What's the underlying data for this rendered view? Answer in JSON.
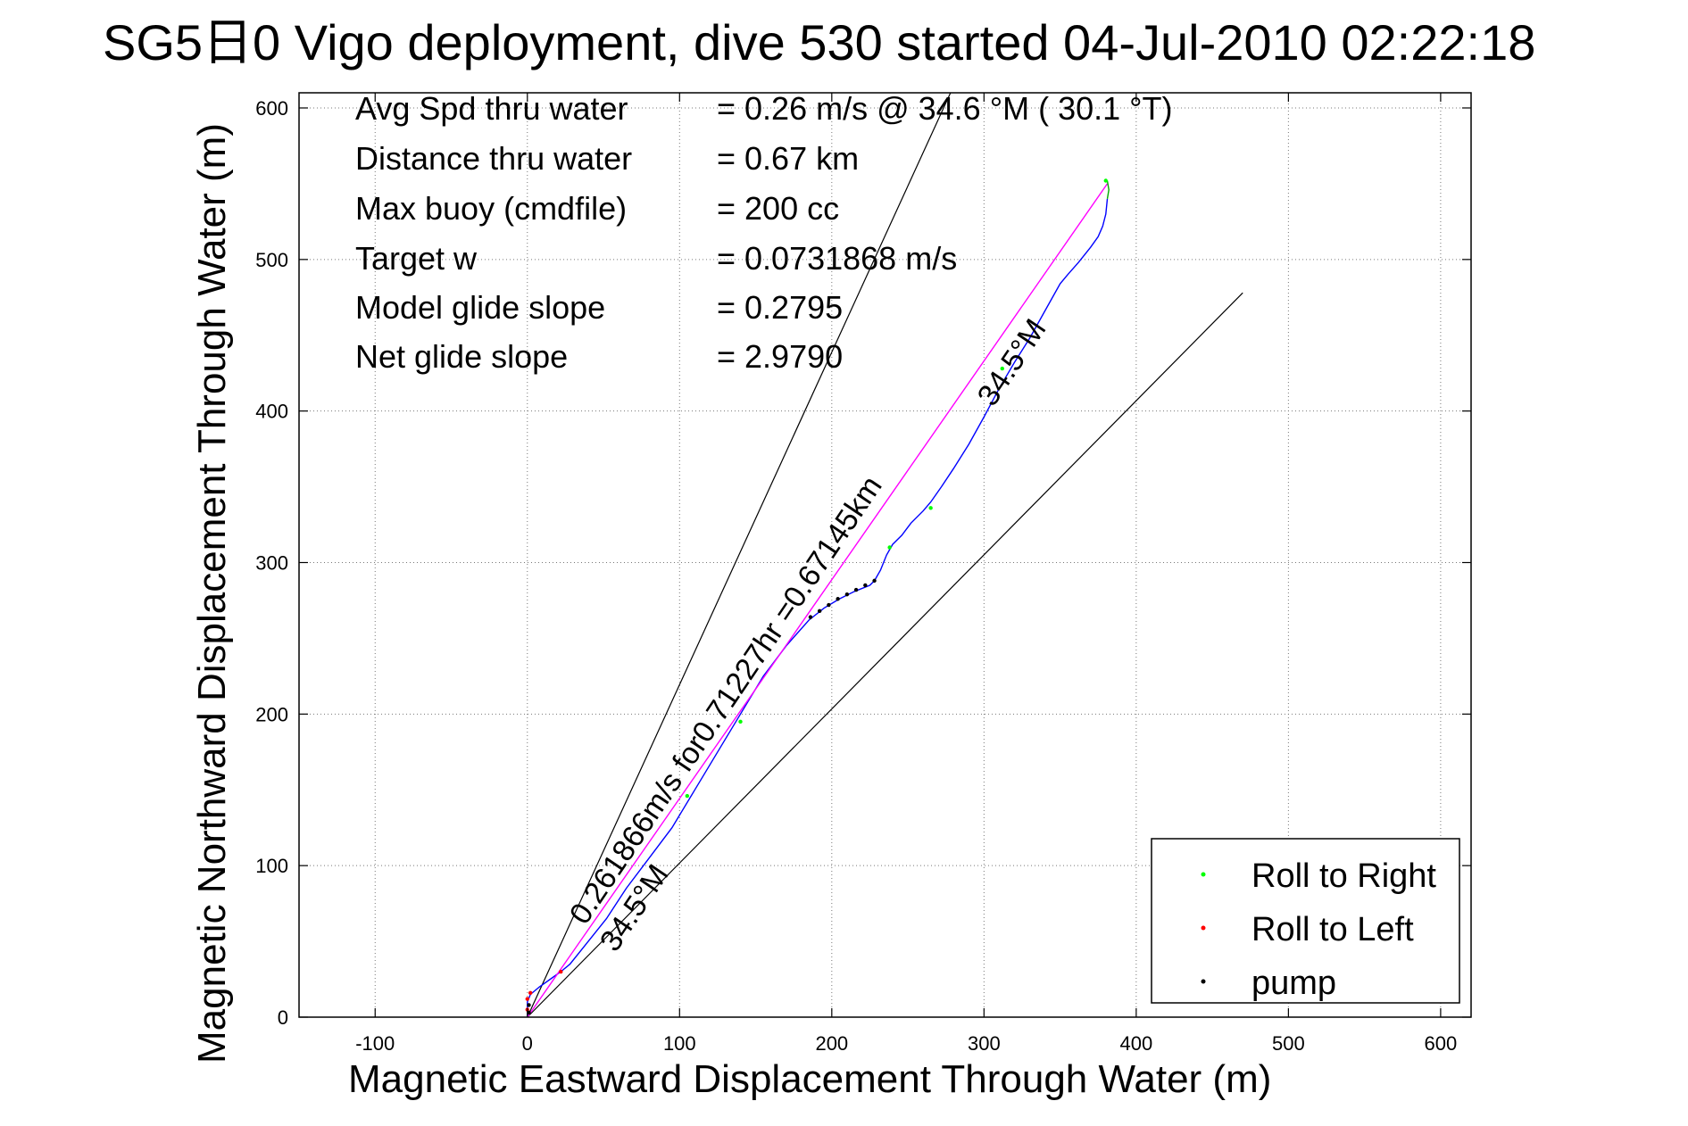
{
  "chart_data": {
    "type": "line",
    "title": "SG5日0 Vigo deployment, dive 530 started 04-Jul-2010 02:22:18",
    "xlabel": "Magnetic Eastward Displacement Through Water (m)",
    "ylabel": "Magnetic Northward Displacement Through Water (m)",
    "xlim": [
      -150,
      620
    ],
    "ylim": [
      0,
      610
    ],
    "xticks": [
      -100,
      0,
      100,
      200,
      300,
      400,
      500,
      600
    ],
    "yticks": [
      0,
      100,
      200,
      300,
      400,
      500,
      600
    ],
    "grid": true,
    "legend_position": "bottom-right",
    "stats": [
      {
        "label": "Avg Spd thru water",
        "value": "=  0.26 m/s @   34.6 °M ( 30.1 °T)"
      },
      {
        "label": "Distance thru water",
        "value": "=  0.67 km"
      },
      {
        "label": "Max buoy (cmdfile)",
        "value": "= 200 cc"
      },
      {
        "label": "Target w",
        "value": "= 0.0731868 m/s"
      },
      {
        "label": "Model glide slope",
        "value": "= 0.2795"
      },
      {
        "label": "Net glide slope",
        "value": "= 2.9790"
      }
    ],
    "annotations": [
      {
        "text": "0.261866m/s for0.71227hr =0.67145km",
        "x": 38,
        "y": 60,
        "angle_deg": -56
      },
      {
        "text": "34.5°M",
        "x": 58,
        "y": 42,
        "angle_deg": -56
      },
      {
        "text": "34.5°M",
        "x": 306,
        "y": 402,
        "angle_deg": -56
      }
    ],
    "reference_lines": [
      {
        "from": [
          0,
          0
        ],
        "to": [
          278,
          610
        ],
        "color": "#000000"
      },
      {
        "from": [
          0,
          0
        ],
        "to": [
          470,
          478
        ],
        "color": "#000000"
      }
    ],
    "series": [
      {
        "style": "line",
        "color": "#0000ff",
        "x": [
          0,
          0,
          2,
          8,
          15,
          22,
          28,
          40,
          52,
          65,
          80,
          95,
          110,
          125,
          140,
          155,
          170,
          185,
          195,
          205,
          215,
          225,
          228,
          232,
          236,
          240,
          246,
          252,
          260,
          265,
          272,
          280,
          290,
          300,
          310,
          320,
          330,
          340,
          350,
          355,
          362,
          370,
          375,
          378,
          380,
          381
        ],
        "y": [
          0,
          10,
          15,
          20,
          25,
          30,
          35,
          50,
          65,
          85,
          105,
          125,
          150,
          175,
          200,
          225,
          245,
          262,
          270,
          276,
          281,
          285,
          288,
          295,
          305,
          312,
          318,
          326,
          334,
          340,
          350,
          362,
          378,
          396,
          415,
          432,
          448,
          466,
          484,
          490,
          498,
          508,
          515,
          522,
          530,
          540
        ]
      },
      {
        "style": "line",
        "color": "#ff00ff",
        "x": [
          0,
          381
        ],
        "y": [
          0,
          550
        ]
      },
      {
        "style": "line",
        "color": "#00aa00",
        "x": [
          381,
          382,
          381
        ],
        "y": [
          540,
          546,
          552
        ]
      },
      {
        "name": "Roll to Right",
        "style": "points",
        "color": "#00ff00",
        "x": [
          105,
          140,
          238,
          265,
          312,
          380
        ],
        "y": [
          146,
          195,
          310,
          336,
          428,
          552
        ]
      },
      {
        "name": "Roll to Left",
        "style": "points",
        "color": "#ff0000",
        "x": [
          0,
          0,
          2,
          22
        ],
        "y": [
          5,
          12,
          16,
          30
        ]
      },
      {
        "name": "pump",
        "style": "points",
        "color": "#000000",
        "x": [
          186,
          192,
          198,
          204,
          210,
          216,
          222,
          228,
          1,
          1
        ],
        "y": [
          264,
          268,
          272,
          276,
          279,
          282,
          285,
          288,
          3,
          8
        ]
      }
    ]
  }
}
